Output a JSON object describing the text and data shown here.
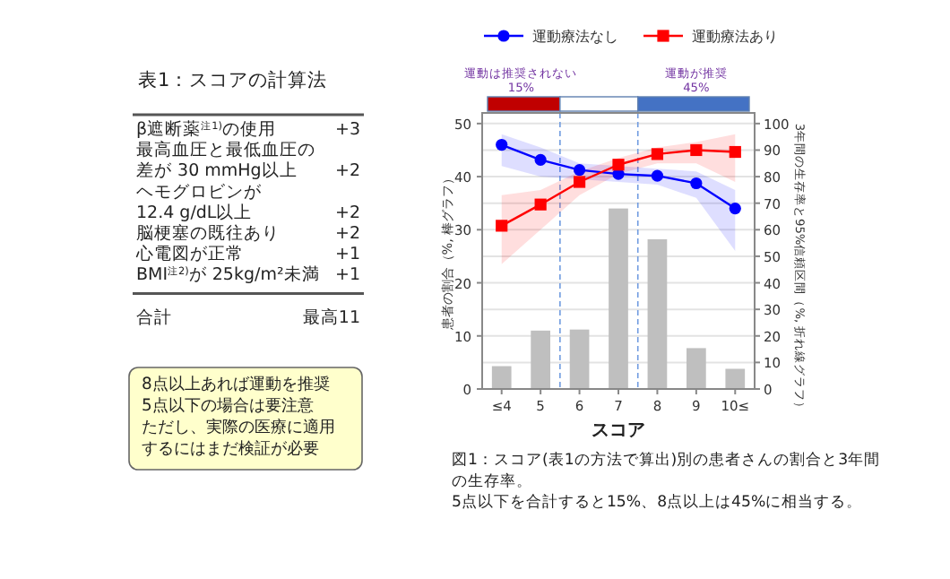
{
  "chart_data": [
    {
      "type": "other",
      "title": "表1：スコアの計算法",
      "categories": [
        "β遮断薬$^{注1)}$の使用",
        "最高血圧と最低血圧の",
        "差が 30 mmHg以上",
        "ヘモグロビンが",
        "12.4 g/dL以上",
        "脳梗塞の既往あり",
        "心電図が正常",
        "BMI$^{注2)}$が 25kg/m²未満"
      ],
      "value_labels": [
        "+3",
        null,
        "+2",
        null,
        "+2",
        "+2",
        "+1",
        "+1"
      ],
      "annotations": [
        "合計",
        "最高11",
        "8点以上あれば運動を推奨",
        "5点以下の場合は要注意",
        "ただし、実際の医療に適用",
        "するにはまだ検証が必要"
      ]
    },
    {
      "type": "bar",
      "categories": [
        "≤4",
        "5",
        "6",
        "7",
        "8",
        "9",
        "10≤"
      ],
      "values": [
        4.3,
        11,
        11.2,
        34,
        28.2,
        7.7,
        3.8
      ],
      "color": "#bfbfbf",
      "series": [
        {
          "name": "運動療法なし",
          "type": "line",
          "axis": "y2",
          "color": "#0000ff",
          "marker": "circle",
          "values": [
            92,
            86.3,
            82.5,
            81,
            80.3,
            77.5,
            68
          ],
          "lower": [
            84,
            80,
            79,
            78,
            77,
            72,
            52
          ],
          "upper": [
            96,
            91,
            85,
            84,
            83,
            82,
            75
          ]
        },
        {
          "name": "運動療法あり",
          "type": "line",
          "axis": "y2",
          "color": "#ff0000",
          "marker": "square",
          "values": [
            61.5,
            69.5,
            78,
            84.5,
            88.5,
            90,
            89.3
          ],
          "lower": [
            47,
            60,
            73,
            81,
            85,
            85,
            78
          ],
          "upper": [
            73,
            75,
            82,
            87,
            91,
            93,
            96
          ]
        }
      ],
      "xlabel": "スコア",
      "ylabel": "患者の割合（%, 棒グラフ）",
      "y2label": "3年間の生存率と95%信頼区間（%, 折れ線グラフ）",
      "ylim": [
        0,
        52
      ],
      "yticks": [
        0,
        10,
        20,
        30,
        40,
        50
      ],
      "y2lim": [
        0,
        104
      ],
      "y2ticks": [
        0,
        10,
        20,
        30,
        40,
        50,
        60,
        70,
        80,
        90,
        100
      ],
      "grid": "y",
      "legend": "top",
      "line_style": "solid",
      "annotations": [
        "運動は推奨されない",
        "15%",
        "運動が推奨",
        "45%",
        "図1：スコア(表1の方法で算出)別の患者さんの割合と3年間の生存率。",
        "5点以下を合計すると15%、8点以上は45%に相当する。"
      ]
    }
  ]
}
